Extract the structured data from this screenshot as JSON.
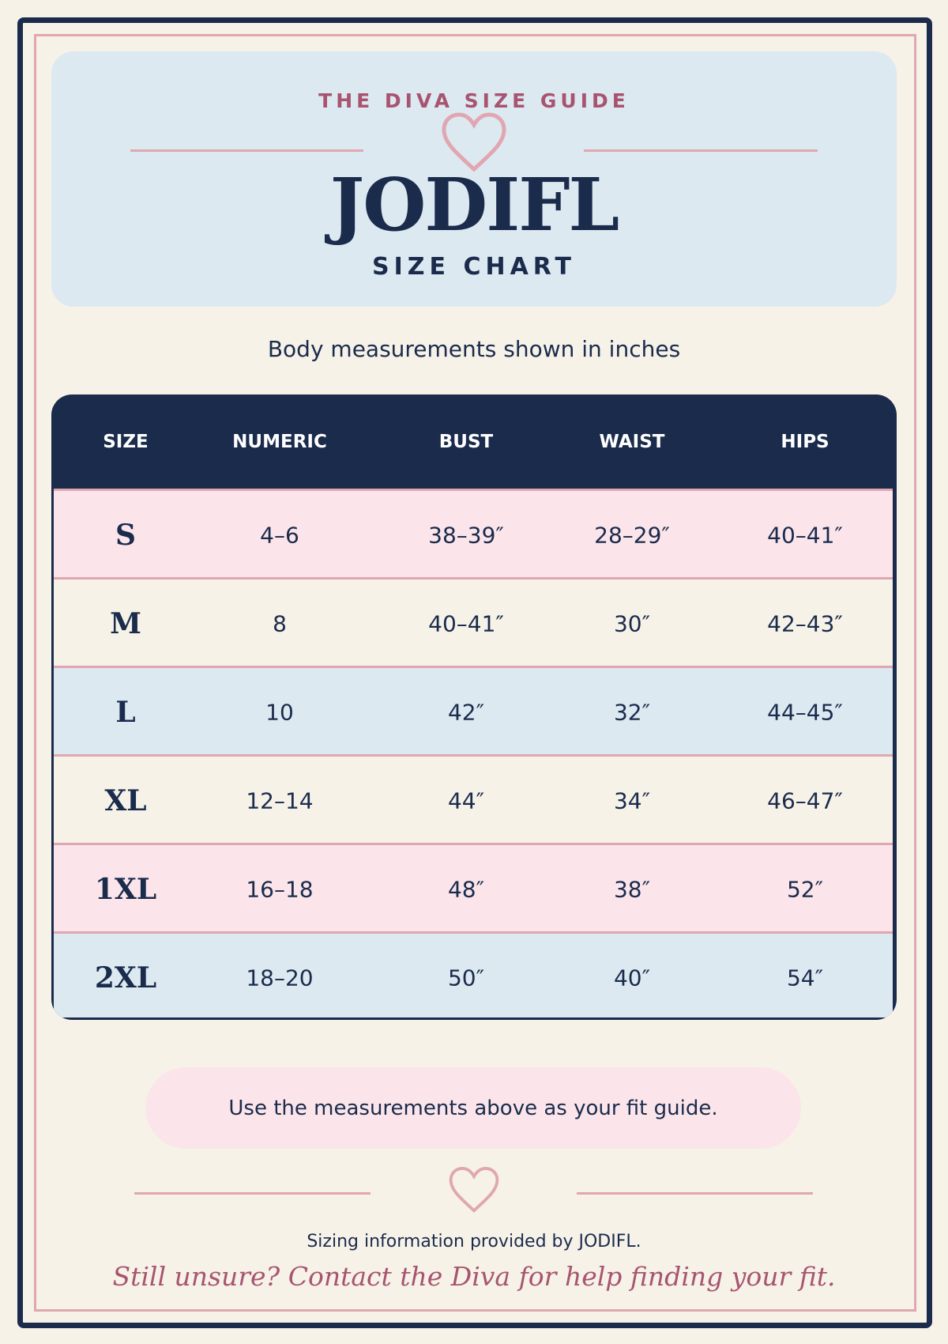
{
  "header": {
    "eyebrow": "THE DIVA SIZE GUIDE",
    "brand": "JODIFL",
    "title": "SIZE CHART"
  },
  "subtitle": "Body measurements shown in inches",
  "table": {
    "columns": [
      "SIZE",
      "NUMERIC",
      "BUST",
      "WAIST",
      "HIPS"
    ],
    "rows": [
      [
        "S",
        "4–6",
        "38–39″",
        "28–29″",
        "40–41″"
      ],
      [
        "M",
        "8",
        "40–41″",
        "30″",
        "42–43″"
      ],
      [
        "L",
        "10",
        "42″",
        "32″",
        "44–45″"
      ],
      [
        "XL",
        "12–14",
        "44″",
        "34″",
        "46–47″"
      ],
      [
        "1XL",
        "16–18",
        "48″",
        "38″",
        "52″"
      ],
      [
        "2XL",
        "18–20",
        "50″",
        "40″",
        "54″"
      ]
    ]
  },
  "note": "Use the measurements above as your fit guide.",
  "footer": {
    "credit": "Sizing information provided by JODIFL.",
    "tagline": "Still unsure? Contact the Diva for help finding your fit."
  }
}
